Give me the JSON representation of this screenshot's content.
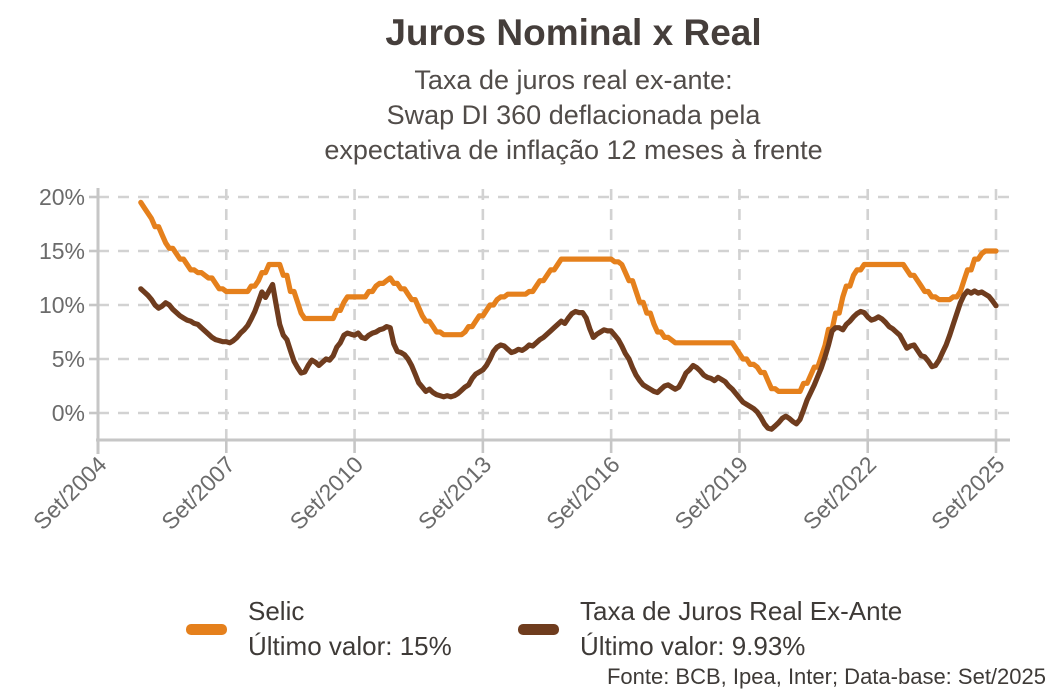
{
  "header": {
    "title": "Juros Nominal x Real",
    "subtitle_lines": {
      "0": "Taxa de juros real ex-ante:",
      "1": "Swap DI 360 deflacionada pela",
      "2": "expectativa de inflação 12 meses à frente"
    }
  },
  "legend": {
    "items": [
      {
        "label": "Selic",
        "last_value_line": "Último valor: 15%"
      },
      {
        "label": "Taxa de Juros Real Ex-Ante",
        "last_value_line": "Último valor: 9.93%"
      }
    ]
  },
  "footer": {
    "text": "Fonte: BCB, Ipea, Inter; Data-base: Set/2025"
  },
  "colors": {
    "selic_orange": "#E5801C",
    "real_brown": "#6F3C1E",
    "axis_gray": "#c6c6c6",
    "grid_gray": "#d2d2d2",
    "tick_label_gray": "#6b6b6b"
  },
  "chart_data": {
    "type": "line",
    "title": "Juros Nominal x Real",
    "subtitle": "Taxa de juros real ex-ante: Swap DI 360 deflacionada pela expectativa de inflação 12 meses à frente",
    "source_note": "Fonte: BCB, Ipea, Inter; Data-base: Set/2025",
    "grid": "dashed",
    "legend_position": "bottom",
    "x_axis": {
      "start": "Set/2004",
      "tick_labels": [
        "Set/2004",
        "Set/2007",
        "Set/2010",
        "Set/2013",
        "Set/2016",
        "Set/2019",
        "Set/2022",
        "Set/2025"
      ],
      "tick_interval_months": 36
    },
    "y_axis": {
      "tick_labels": [
        "20%",
        "15%",
        "10%",
        "5%",
        "0%"
      ],
      "tick_values": [
        20,
        15,
        10,
        5,
        0
      ],
      "ylim_display": [
        0,
        20
      ]
    },
    "series_start": "Set/2005",
    "series_end": "Set/2025",
    "series_frequency": "monthly",
    "start_month_offset": 12,
    "series": [
      {
        "name": "Selic",
        "color": "#E5801C",
        "last_value": 15,
        "last_value_label": "15%",
        "values": [
          19.5,
          19.0,
          18.5,
          18.0,
          17.25,
          17.25,
          16.5,
          15.75,
          15.25,
          15.25,
          14.75,
          14.25,
          14.25,
          13.75,
          13.25,
          13.25,
          13.0,
          13.0,
          12.75,
          12.5,
          12.5,
          12.0,
          11.5,
          11.5,
          11.25,
          11.25,
          11.25,
          11.25,
          11.25,
          11.25,
          11.25,
          11.75,
          11.75,
          12.25,
          13.0,
          13.0,
          13.75,
          13.75,
          13.75,
          13.75,
          12.75,
          12.75,
          11.25,
          11.25,
          10.25,
          9.25,
          8.75,
          8.75,
          8.75,
          8.75,
          8.75,
          8.75,
          8.75,
          8.75,
          8.75,
          9.5,
          9.5,
          10.25,
          10.75,
          10.75,
          10.75,
          10.75,
          10.75,
          10.75,
          11.25,
          11.25,
          11.75,
          12.0,
          12.0,
          12.25,
          12.5,
          12.0,
          12.0,
          11.5,
          11.5,
          11.0,
          10.5,
          10.5,
          9.75,
          9.0,
          8.5,
          8.5,
          8.0,
          7.5,
          7.5,
          7.25,
          7.25,
          7.25,
          7.25,
          7.25,
          7.25,
          7.5,
          8.0,
          8.0,
          8.5,
          9.0,
          9.0,
          9.5,
          10.0,
          10.0,
          10.5,
          10.75,
          10.75,
          11.0,
          11.0,
          11.0,
          11.0,
          11.0,
          11.0,
          11.25,
          11.25,
          11.75,
          12.25,
          12.25,
          12.75,
          13.25,
          13.25,
          13.75,
          14.25,
          14.25,
          14.25,
          14.25,
          14.25,
          14.25,
          14.25,
          14.25,
          14.25,
          14.25,
          14.25,
          14.25,
          14.25,
          14.25,
          14.25,
          14.0,
          14.0,
          13.75,
          13.0,
          12.25,
          12.25,
          11.25,
          10.25,
          10.25,
          9.25,
          9.25,
          8.25,
          7.5,
          7.5,
          7.0,
          7.0,
          6.75,
          6.5,
          6.5,
          6.5,
          6.5,
          6.5,
          6.5,
          6.5,
          6.5,
          6.5,
          6.5,
          6.5,
          6.5,
          6.5,
          6.5,
          6.5,
          6.5,
          6.5,
          6.0,
          5.5,
          5.0,
          5.0,
          4.5,
          4.5,
          4.25,
          3.75,
          3.75,
          3.0,
          2.25,
          2.25,
          2.0,
          2.0,
          2.0,
          2.0,
          2.0,
          2.0,
          2.0,
          2.75,
          2.75,
          3.5,
          4.25,
          4.25,
          5.25,
          6.25,
          7.75,
          7.75,
          9.25,
          9.25,
          10.75,
          11.75,
          11.75,
          12.75,
          13.25,
          13.25,
          13.75,
          13.75,
          13.75,
          13.75,
          13.75,
          13.75,
          13.75,
          13.75,
          13.75,
          13.75,
          13.75,
          13.75,
          13.25,
          12.75,
          12.75,
          12.25,
          11.75,
          11.25,
          11.25,
          10.75,
          10.75,
          10.5,
          10.5,
          10.5,
          10.5,
          10.75,
          10.75,
          11.25,
          12.25,
          13.25,
          13.25,
          14.25,
          14.25,
          14.75,
          15.0,
          15.0,
          15.0,
          15.0
        ]
      },
      {
        "name": "Taxa de Juros Real Ex-Ante",
        "color": "#6F3C1E",
        "last_value": 9.93,
        "last_value_label": "9.93%",
        "values": [
          11.5,
          11.2,
          10.9,
          10.5,
          10.0,
          9.7,
          9.9,
          10.2,
          10.0,
          9.6,
          9.3,
          9.0,
          8.8,
          8.6,
          8.5,
          8.3,
          8.2,
          7.9,
          7.6,
          7.3,
          7.0,
          6.8,
          6.7,
          6.6,
          6.6,
          6.5,
          6.7,
          7.0,
          7.4,
          7.7,
          8.1,
          8.7,
          9.4,
          10.3,
          11.2,
          10.7,
          11.3,
          11.9,
          10.0,
          8.2,
          7.2,
          6.8,
          5.8,
          4.8,
          4.2,
          3.7,
          3.8,
          4.4,
          4.9,
          4.7,
          4.4,
          4.7,
          5.0,
          4.9,
          5.3,
          6.1,
          6.5,
          7.2,
          7.4,
          7.3,
          7.2,
          7.4,
          7.0,
          6.9,
          7.2,
          7.4,
          7.5,
          7.7,
          7.8,
          8.0,
          7.9,
          6.4,
          5.7,
          5.6,
          5.4,
          5.0,
          4.4,
          3.6,
          2.8,
          2.4,
          2.0,
          2.2,
          1.9,
          1.7,
          1.6,
          1.5,
          1.6,
          1.5,
          1.6,
          1.8,
          2.1,
          2.4,
          2.6,
          3.2,
          3.6,
          3.8,
          4.0,
          4.4,
          5.0,
          5.7,
          6.1,
          6.3,
          6.2,
          5.9,
          5.6,
          5.7,
          5.9,
          5.8,
          6.0,
          6.3,
          6.2,
          6.5,
          6.8,
          7.0,
          7.3,
          7.6,
          7.9,
          8.2,
          8.5,
          8.3,
          8.8,
          9.2,
          9.4,
          9.3,
          9.3,
          8.8,
          7.8,
          7.0,
          7.3,
          7.5,
          7.7,
          7.6,
          7.6,
          7.2,
          6.8,
          6.2,
          5.5,
          5.0,
          4.2,
          3.5,
          3.0,
          2.6,
          2.4,
          2.2,
          2.0,
          1.9,
          2.2,
          2.5,
          2.6,
          2.4,
          2.2,
          2.4,
          3.0,
          3.7,
          4.0,
          4.4,
          4.2,
          3.9,
          3.5,
          3.3,
          3.2,
          3.0,
          3.3,
          3.1,
          2.9,
          2.5,
          2.2,
          1.8,
          1.4,
          1.0,
          0.8,
          0.6,
          0.4,
          0.1,
          -0.4,
          -1.0,
          -1.4,
          -1.5,
          -1.2,
          -0.9,
          -0.5,
          -0.3,
          -0.5,
          -0.8,
          -1.0,
          -0.6,
          0.3,
          1.2,
          1.9,
          2.6,
          3.4,
          4.2,
          5.2,
          6.3,
          7.6,
          7.9,
          7.9,
          7.7,
          8.2,
          8.5,
          8.9,
          9.2,
          9.4,
          9.3,
          8.9,
          8.6,
          8.7,
          8.9,
          8.7,
          8.4,
          8.0,
          7.8,
          7.5,
          7.2,
          6.6,
          6.0,
          6.2,
          6.3,
          5.8,
          5.3,
          5.2,
          4.8,
          4.3,
          4.4,
          4.9,
          5.6,
          6.3,
          7.2,
          8.2,
          9.2,
          10.2,
          10.9,
          11.3,
          11.1,
          11.3,
          11.1,
          11.2,
          11.0,
          10.8,
          10.4,
          9.93
        ]
      }
    ]
  }
}
